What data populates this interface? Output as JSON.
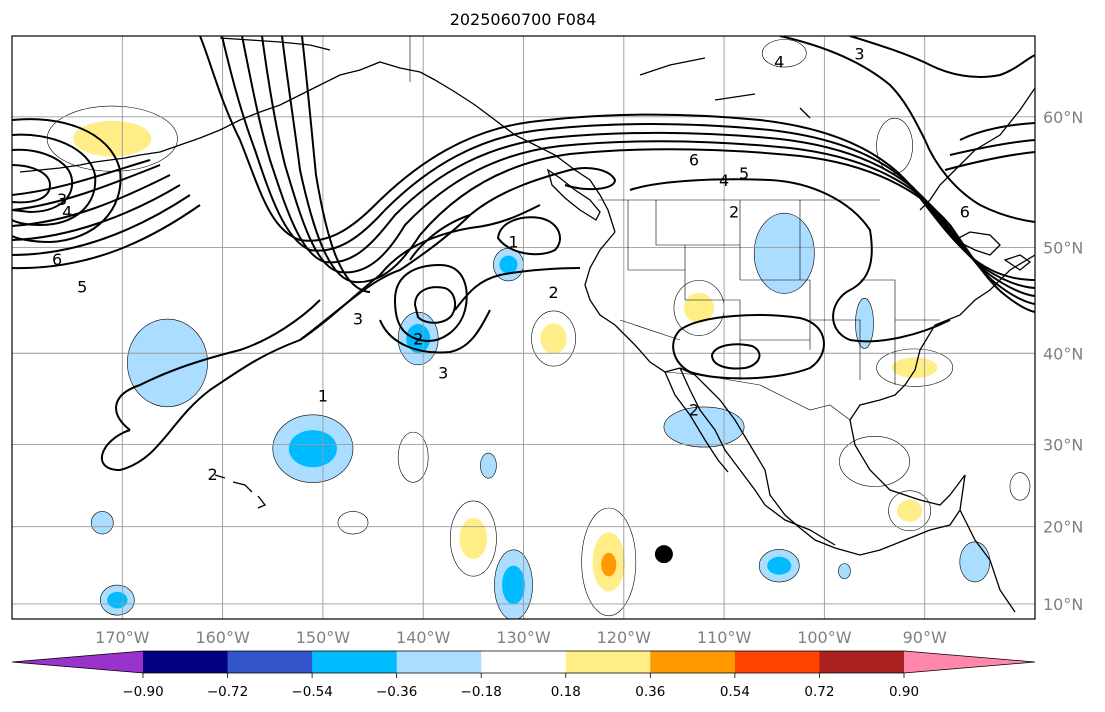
{
  "title": "2025060700 F084",
  "map": {
    "projection": "Mercator",
    "extent": {
      "lon_min": 179,
      "lon_max": 281,
      "lat_min": 8,
      "lat_max": 65
    },
    "lon_ticks": [
      {
        "lon": -170,
        "label": "170°W"
      },
      {
        "lon": -160,
        "label": "160°W"
      },
      {
        "lon": -150,
        "label": "150°W"
      },
      {
        "lon": -140,
        "label": "140°W"
      },
      {
        "lon": -130,
        "label": "130°W"
      },
      {
        "lon": -120,
        "label": "120°W"
      },
      {
        "lon": -110,
        "label": "110°W"
      },
      {
        "lon": -100,
        "label": "100°W"
      },
      {
        "lon": -90,
        "label": "90°W"
      }
    ],
    "lat_ticks": [
      {
        "lat": 60,
        "label": "60°N"
      },
      {
        "lat": 50,
        "label": "50°N"
      },
      {
        "lat": 40,
        "label": "40°N"
      },
      {
        "lat": 30,
        "label": "30°N"
      },
      {
        "lat": 20,
        "label": "20°N"
      },
      {
        "lat": 10,
        "label": "10°N"
      }
    ],
    "marker": {
      "lon": -116,
      "lat": 16.5,
      "color": "#000000"
    },
    "contour_labels": [
      {
        "text": "1",
        "lon": -150,
        "lat": 35.5
      },
      {
        "text": "3",
        "lon": -146.5,
        "lat": 43.5
      },
      {
        "text": "1",
        "lon": -131,
        "lat": 50.5
      },
      {
        "text": "2",
        "lon": -127,
        "lat": 46
      },
      {
        "text": "2",
        "lon": -140.5,
        "lat": 41.5
      },
      {
        "text": "3",
        "lon": -138,
        "lat": 38
      },
      {
        "text": "2",
        "lon": -161,
        "lat": 26.5
      },
      {
        "text": "6",
        "lon": -113,
        "lat": 57
      },
      {
        "text": "4",
        "lon": -110,
        "lat": 55.5
      },
      {
        "text": "5",
        "lon": -108,
        "lat": 56
      },
      {
        "text": "2",
        "lon": -109,
        "lat": 53
      },
      {
        "text": "3",
        "lon": -176,
        "lat": 54
      },
      {
        "text": "4",
        "lon": -175.5,
        "lat": 53
      },
      {
        "text": "6",
        "lon": -176.5,
        "lat": 49
      },
      {
        "text": "5",
        "lon": -174,
        "lat": 46.5
      },
      {
        "text": "3",
        "lon": -96.5,
        "lat": 64
      },
      {
        "text": "4",
        "lon": -104.5,
        "lat": 63.5
      },
      {
        "text": "6",
        "lon": -86,
        "lat": 53
      },
      {
        "text": "2",
        "lon": -113,
        "lat": 34
      }
    ],
    "anomaly_blobs": [
      {
        "lon": -171,
        "lat": 58.5,
        "rx": 6.5,
        "ry": 2.6,
        "cat": 5,
        "core": 6
      },
      {
        "lon": -127,
        "lat": 41.5,
        "rx": 2.2,
        "ry": 2.2,
        "cat": 5,
        "core": 6
      },
      {
        "lon": -112.5,
        "lat": 44.5,
        "rx": 2.5,
        "ry": 2.2,
        "cat": 5,
        "core": 6
      },
      {
        "lon": -91,
        "lat": 38.5,
        "rx": 3.8,
        "ry": 1.5,
        "cat": 5,
        "core": 6
      },
      {
        "lon": -141,
        "lat": 28.5,
        "rx": 1.5,
        "ry": 2.0,
        "cat": 5
      },
      {
        "lon": -147,
        "lat": 20.5,
        "rx": 1.5,
        "ry": 0.9,
        "cat": 5
      },
      {
        "lon": -135,
        "lat": 18.5,
        "rx": 2.3,
        "ry": 3.0,
        "cat": 5,
        "core": 6
      },
      {
        "lon": -121.5,
        "lat": 15.5,
        "rx": 2.7,
        "ry": 4.3,
        "cat": 5,
        "core": 6,
        "peak": 7
      },
      {
        "lon": -93,
        "lat": 58,
        "rx": 1.8,
        "ry": 2.2,
        "cat": 5
      },
      {
        "lon": -104,
        "lat": 64,
        "rx": 2.2,
        "ry": 1.1,
        "cat": 5
      },
      {
        "lon": -95,
        "lat": 28,
        "rx": 3.5,
        "ry": 2.0,
        "cat": 5
      },
      {
        "lon": -91.5,
        "lat": 22,
        "rx": 2.1,
        "ry": 1.6,
        "cat": 5,
        "core": 6
      },
      {
        "lon": -80.5,
        "lat": 25,
        "rx": 1.0,
        "ry": 1.1,
        "cat": 5
      },
      {
        "lon": -104,
        "lat": 49.5,
        "rx": 3.0,
        "ry": 3.2,
        "cat": 4
      },
      {
        "lon": -96,
        "lat": 43,
        "rx": 0.9,
        "ry": 2.0,
        "cat": 4
      },
      {
        "lon": -140.5,
        "lat": 41.5,
        "rx": 2.0,
        "ry": 2.1,
        "cat": 4,
        "core": 3
      },
      {
        "lon": -131.5,
        "lat": 48.5,
        "rx": 1.5,
        "ry": 1.3,
        "cat": 4,
        "core": 3
      },
      {
        "lon": -165.5,
        "lat": 39,
        "rx": 4.0,
        "ry": 3.5,
        "cat": 4
      },
      {
        "lon": -151,
        "lat": 29.5,
        "rx": 4.0,
        "ry": 2.7,
        "cat": 4,
        "core": 3
      },
      {
        "lon": -133.5,
        "lat": 27.5,
        "rx": 0.8,
        "ry": 1.0,
        "cat": 4
      },
      {
        "lon": -112,
        "lat": 32,
        "rx": 4.0,
        "ry": 1.6,
        "cat": 4
      },
      {
        "lon": -131,
        "lat": 12.5,
        "rx": 1.9,
        "ry": 2.8,
        "cat": 4,
        "core": 3
      },
      {
        "lon": -104.5,
        "lat": 15,
        "rx": 2.0,
        "ry": 1.3,
        "cat": 4,
        "core": 3
      },
      {
        "lon": -170.5,
        "lat": 10.5,
        "rx": 1.7,
        "ry": 1.2,
        "cat": 4,
        "core": 3
      },
      {
        "lon": -172,
        "lat": 20.5,
        "rx": 1.1,
        "ry": 0.9,
        "cat": 4
      },
      {
        "lon": -85,
        "lat": 15.5,
        "rx": 1.5,
        "ry": 1.6,
        "cat": 4
      },
      {
        "lon": -98,
        "lat": 14.3,
        "rx": 0.6,
        "ry": 0.6,
        "cat": 4
      }
    ]
  },
  "colorbar": {
    "colors": [
      "#9933cc",
      "#000080",
      "#3355cc",
      "#00bbff",
      "#aaddff",
      "#ffffff",
      "#ffee88",
      "#ff9900",
      "#ff4400",
      "#aa2222",
      "#ff88aa"
    ],
    "tick_labels": [
      "−0.90",
      "−0.72",
      "−0.54",
      "−0.36",
      "−0.18",
      "0.18",
      "0.36",
      "0.54",
      "0.72",
      "0.90"
    ]
  }
}
